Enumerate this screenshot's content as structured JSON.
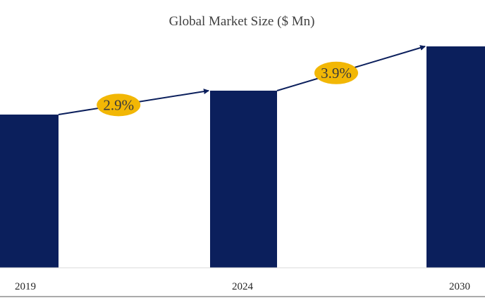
{
  "chart_data": {
    "type": "bar",
    "title": "Global Market Size ($ Mn)",
    "categories": [
      "2019",
      "2024",
      "2030"
    ],
    "values": [
      218,
      252,
      315
    ],
    "ylim": [
      0,
      330
    ],
    "xlabel": "",
    "ylabel": "",
    "grid": false,
    "legend": "none",
    "bar_color": "#0b1f5c",
    "annotations": [
      {
        "label": "2.9%",
        "from": "2019",
        "to": "2024"
      },
      {
        "label": "3.9%",
        "from": "2024",
        "to": "2030"
      }
    ],
    "annotation_fill": "#f2b705",
    "arrow_color": "#0b1f5c"
  }
}
